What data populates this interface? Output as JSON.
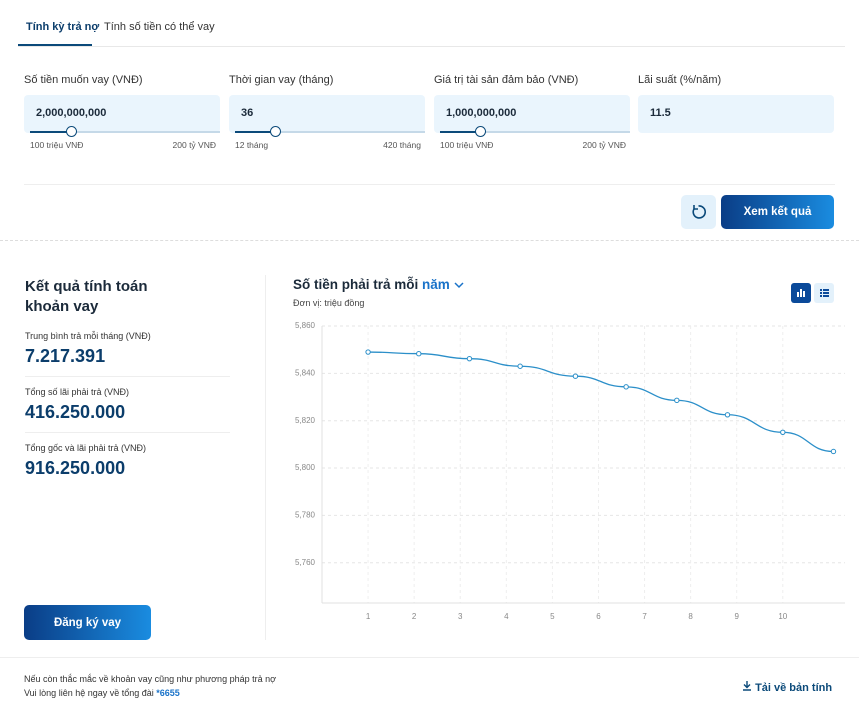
{
  "tabs": [
    "Tính kỳ trả nợ",
    "Tính số tiền có thể vay"
  ],
  "form": {
    "fields": [
      {
        "label": "Số tiền muốn vay (VNĐ)",
        "value": "2,000,000,000",
        "min_label": "100 triệu VNĐ",
        "max_label": "200 tỷ VNĐ"
      },
      {
        "label": "Thời gian vay (tháng)",
        "value": "36",
        "min_label": "12 tháng",
        "max_label": "420 tháng"
      },
      {
        "label": "Giá trị tài sản đảm bảo (VNĐ)",
        "value": "1,000,000,000",
        "min_label": "100 triệu VNĐ",
        "max_label": "200 tỷ VNĐ"
      },
      {
        "label": "Lãi suất (%/năm)",
        "value": "11.5"
      }
    ],
    "submit": "Xem kết quả"
  },
  "results": {
    "title": "Kết quả tính toán khoản vay",
    "stats": [
      {
        "label": "Trung bình trả mỗi tháng (VNĐ)",
        "value": "7.217.391"
      },
      {
        "label": "Tổng số lãi phải trả (VNĐ)",
        "value": "416.250.000"
      },
      {
        "label": "Tổng gốc và lãi phải trả (VNĐ)",
        "value": "916.250.000"
      }
    ],
    "register": "Đăng ký vay"
  },
  "chart_data": {
    "type": "line",
    "title": "Số tiền phải trả mỗi",
    "period": "năm",
    "subtitle": "Đơn vị: triệu đồng",
    "x": [
      1,
      2.1,
      3.2,
      4.3,
      5.5,
      6.6,
      7.7,
      8.8,
      10,
      11.1
    ],
    "values": [
      5849.0,
      5848.3,
      5846.2,
      5843.0,
      5838.8,
      5834.3,
      5828.6,
      5822.5,
      5815.1,
      5807.0
    ],
    "color": "#2b8fc9",
    "xlim": [
      0,
      11.35
    ],
    "xticks": [
      1,
      2,
      3,
      4,
      5,
      6,
      7,
      8,
      9,
      10
    ],
    "ylim": [
      5743,
      5860
    ],
    "yticks": [
      {
        "value": 5760,
        "label": "5,760"
      },
      {
        "value": 5780,
        "label": "5,780"
      },
      {
        "value": 5800,
        "label": "5,800"
      },
      {
        "value": 5820,
        "label": "5,820"
      },
      {
        "value": 5840,
        "label": "5,840"
      },
      {
        "value": 5860,
        "label": "5,860"
      }
    ],
    "grid": true
  },
  "footer": {
    "lines": [
      "Nếu còn thắc mắc về khoản vay cũng như phương pháp trả nợ",
      "Vui lòng liên hệ ngay về tổng đài"
    ],
    "hotline": "*6655",
    "download": "Tải về bản tính"
  }
}
